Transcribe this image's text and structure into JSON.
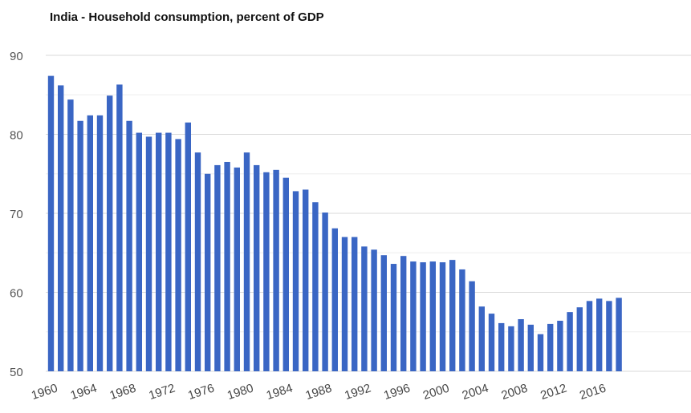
{
  "chart_data": {
    "type": "bar",
    "title": "India - Household consumption, percent of GDP",
    "xlabel": "",
    "ylabel": "",
    "ylim": [
      50,
      90
    ],
    "yticks": [
      "50",
      "60",
      "70",
      "80",
      "90"
    ],
    "xtick_labels": [
      "1960",
      "1964",
      "1968",
      "1972",
      "1976",
      "1980",
      "1984",
      "1988",
      "1992",
      "1996",
      "2000",
      "2004",
      "2008",
      "2012",
      "2016"
    ],
    "grid": true,
    "legend": "none",
    "bar_color": "#3a66c4",
    "grid_color": "#d9d9d9",
    "categories": [
      1960,
      1961,
      1962,
      1963,
      1964,
      1965,
      1966,
      1967,
      1968,
      1969,
      1970,
      1971,
      1972,
      1973,
      1974,
      1975,
      1976,
      1977,
      1978,
      1979,
      1980,
      1981,
      1982,
      1983,
      1984,
      1985,
      1986,
      1987,
      1988,
      1989,
      1990,
      1991,
      1992,
      1993,
      1994,
      1995,
      1996,
      1997,
      1998,
      1999,
      2000,
      2001,
      2002,
      2003,
      2004,
      2005,
      2006,
      2007,
      2008,
      2009,
      2010,
      2011,
      2012,
      2013,
      2014,
      2015,
      2016,
      2017,
      2018
    ],
    "values": [
      87.4,
      86.2,
      84.4,
      81.7,
      82.4,
      82.4,
      84.9,
      86.3,
      81.7,
      80.2,
      79.7,
      80.2,
      80.2,
      79.4,
      81.5,
      77.7,
      75.0,
      76.1,
      76.5,
      75.8,
      77.7,
      76.1,
      75.2,
      75.5,
      74.5,
      72.8,
      73.0,
      71.4,
      70.1,
      68.1,
      67.0,
      67.0,
      65.8,
      65.4,
      64.7,
      63.6,
      64.6,
      63.9,
      63.8,
      63.9,
      63.8,
      64.1,
      62.9,
      61.4,
      58.2,
      57.3,
      56.1,
      55.7,
      56.6,
      55.9,
      54.7,
      56.0,
      56.4,
      57.5,
      58.1,
      58.9,
      59.2,
      58.9,
      59.3
    ]
  }
}
